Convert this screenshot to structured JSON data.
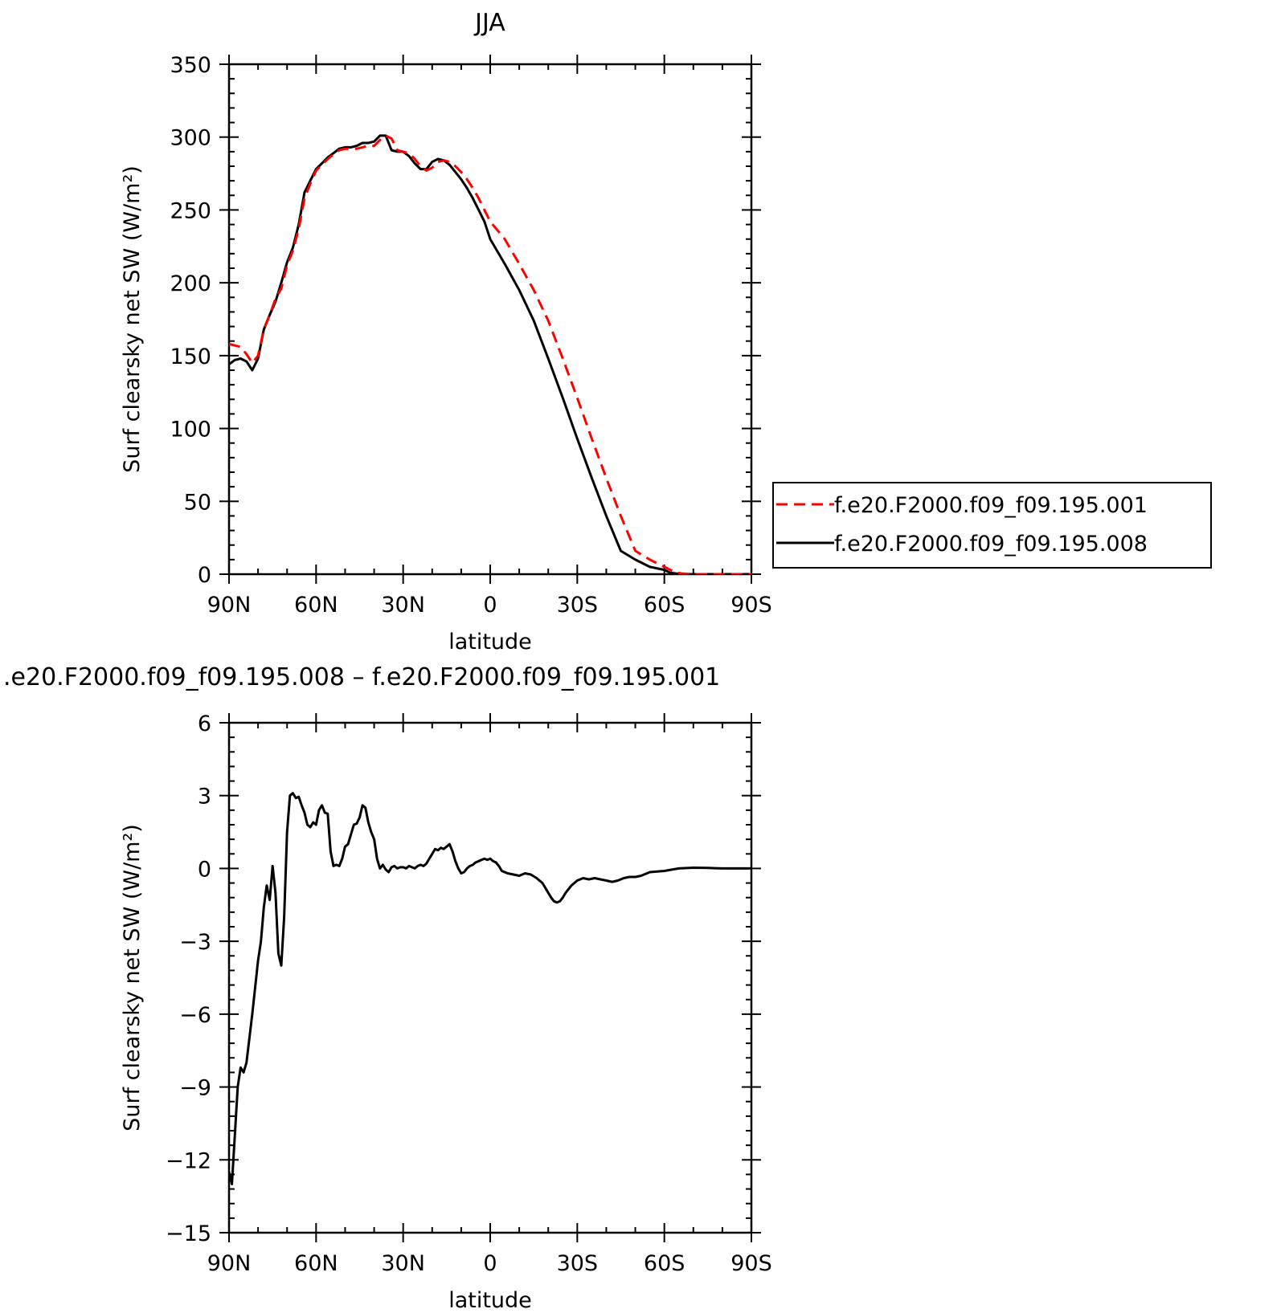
{
  "chart_data": [
    {
      "type": "line",
      "title": "JJA",
      "xlabel": "latitude",
      "ylabel": "Surf clearsky net SW (W/m²)",
      "xlim": [
        90,
        -90
      ],
      "ylim": [
        0,
        350
      ],
      "x_ticks": [
        90,
        60,
        30,
        0,
        -30,
        -60,
        -90
      ],
      "x_tick_labels": [
        "90N",
        "60N",
        "30N",
        "0",
        "30S",
        "60S",
        "90S"
      ],
      "y_ticks": [
        0,
        50,
        100,
        150,
        200,
        250,
        300,
        350
      ],
      "y_tick_labels": [
        "0",
        "50",
        "100",
        "150",
        "200",
        "250",
        "300",
        "350"
      ],
      "legend_position": "right",
      "series": [
        {
          "name": "f.e20.F2000.f09_f09.195.001",
          "color": "#ff0000",
          "dash": "dashed",
          "x": [
            90,
            86,
            84,
            82,
            80,
            78,
            76,
            74,
            72,
            70,
            68,
            66,
            64,
            62,
            60,
            58,
            56,
            54,
            52,
            50,
            48,
            46,
            44,
            42,
            40,
            38,
            36,
            34,
            32,
            30,
            28,
            26,
            24,
            22,
            20,
            18,
            16,
            14,
            12,
            10,
            8,
            6,
            4,
            2,
            0,
            -5,
            -10,
            -15,
            -20,
            -25,
            -30,
            -35,
            -40,
            -45,
            -50,
            -55,
            -60,
            -62,
            -64,
            -66,
            -68,
            -70,
            -75,
            -80,
            -90
          ],
          "y": [
            158,
            156,
            151,
            145,
            150,
            168,
            178,
            189,
            196,
            212,
            222,
            237,
            258,
            268,
            277,
            281,
            285,
            288,
            291,
            292,
            292,
            292,
            293,
            294,
            294,
            298,
            301,
            299,
            291,
            290,
            289,
            285,
            280,
            277,
            279,
            283,
            284,
            283,
            280,
            276,
            271,
            265,
            258,
            250,
            242,
            230,
            213,
            195,
            174,
            148,
            121,
            93,
            66,
            40,
            16,
            10,
            5,
            3,
            1,
            0.5,
            0.2,
            0,
            0,
            0,
            0
          ]
        },
        {
          "name": "f.e20.F2000.f09_f09.195.008",
          "color": "#000000",
          "dash": "solid",
          "x": [
            90,
            88,
            86,
            84,
            82,
            80,
            78,
            76,
            74,
            72,
            70,
            68,
            66,
            64,
            62,
            60,
            58,
            56,
            54,
            52,
            50,
            48,
            46,
            44,
            42,
            40,
            38,
            36,
            34,
            32,
            30,
            28,
            26,
            24,
            22,
            20,
            18,
            16,
            14,
            12,
            10,
            8,
            6,
            4,
            2,
            0,
            -5,
            -10,
            -15,
            -20,
            -25,
            -30,
            -35,
            -40,
            -45,
            -50,
            -55,
            -60,
            -62,
            -64,
            -66,
            -68,
            -70,
            -75,
            -80,
            -90
          ],
          "y": [
            144,
            147,
            148,
            146,
            140,
            148,
            168,
            178,
            187,
            200,
            214,
            224,
            240,
            262,
            270,
            278,
            282,
            286,
            289,
            292,
            293,
            293,
            294,
            296,
            296,
            297,
            301,
            301,
            291,
            290,
            290,
            287,
            282,
            278,
            278,
            283,
            285,
            284,
            281,
            276,
            271,
            265,
            258,
            250,
            242,
            230,
            213,
            195,
            174,
            148,
            121,
            93,
            66,
            40,
            16,
            10,
            5,
            3,
            1,
            0.5,
            0.2,
            0,
            0,
            0,
            0,
            0
          ]
        }
      ]
    },
    {
      "type": "line",
      "title": ".e20.F2000.f09_f09.195.008 – f.e20.F2000.f09_f09.195.001",
      "xlabel": "latitude",
      "ylabel": "Surf clearsky net SW (W/m²)",
      "xlim": [
        90,
        -90
      ],
      "ylim": [
        -15,
        6
      ],
      "x_ticks": [
        90,
        60,
        30,
        0,
        -30,
        -60,
        -90
      ],
      "x_tick_labels": [
        "90N",
        "60N",
        "30N",
        "0",
        "30S",
        "60S",
        "90S"
      ],
      "y_ticks": [
        6,
        3,
        0,
        -3,
        -6,
        -9,
        -12,
        -15
      ],
      "y_tick_labels": [
        "6",
        "3",
        "0",
        "−3",
        "−6",
        "−9",
        "−12",
        "−15"
      ],
      "series": [
        {
          "color": "#000000",
          "dash": "solid",
          "x": [
            90,
            89,
            88,
            87,
            86,
            85,
            84,
            83,
            82,
            80,
            79,
            78,
            77,
            76,
            75,
            74,
            73,
            72,
            71,
            70,
            69,
            68,
            67,
            66,
            65,
            64,
            63,
            62,
            61,
            60,
            59,
            58,
            57,
            56,
            55,
            54,
            53,
            52,
            51,
            50,
            49,
            48,
            47,
            46,
            45,
            44,
            43,
            42,
            41,
            40,
            39,
            38,
            37,
            36,
            35,
            34,
            33,
            32,
            31,
            30,
            29,
            28,
            27,
            26,
            25,
            24,
            23,
            22,
            21,
            20,
            19,
            18,
            17,
            16,
            15,
            14,
            13,
            12,
            11,
            10,
            9,
            8,
            7,
            6,
            5,
            4,
            3,
            2,
            1,
            0,
            -1,
            -2,
            -3,
            -4,
            -6,
            -8,
            -10,
            -12,
            -14,
            -16,
            -18,
            -20,
            -21,
            -22,
            -23,
            -24,
            -25,
            -26,
            -28,
            -30,
            -32,
            -34,
            -36,
            -38,
            -40,
            -42,
            -44,
            -46,
            -48,
            -50,
            -52,
            -55,
            -60,
            -65,
            -70,
            -75,
            -80,
            -85,
            -90
          ],
          "y": [
            -12.5,
            -13,
            -11,
            -9,
            -8.2,
            -8.4,
            -8,
            -7,
            -6,
            -3.8,
            -3,
            -1.6,
            -0.7,
            -1.3,
            0.1,
            -1,
            -3.5,
            -4,
            -2,
            1.5,
            3,
            3.1,
            2.9,
            2.95,
            2.6,
            2.3,
            1.8,
            1.7,
            1.9,
            1.8,
            2.4,
            2.6,
            2.3,
            2.25,
            0.7,
            0.1,
            0.15,
            0.1,
            0.4,
            0.9,
            1.0,
            1.4,
            1.8,
            1.85,
            2.1,
            2.6,
            2.5,
            1.9,
            1.5,
            1.2,
            0.4,
            0.0,
            0.15,
            -0.05,
            -0.15,
            0.05,
            0.1,
            0.0,
            0.05,
            0.05,
            0.0,
            0.1,
            0.05,
            0.0,
            0.1,
            0.15,
            0.1,
            0.2,
            0.4,
            0.6,
            0.8,
            0.75,
            0.85,
            0.8,
            0.9,
            1.0,
            0.7,
            0.3,
            0.0,
            -0.2,
            -0.15,
            0.0,
            0.1,
            0.15,
            0.25,
            0.3,
            0.35,
            0.4,
            0.35,
            0.4,
            0.3,
            0.25,
            0.1,
            -0.1,
            -0.2,
            -0.25,
            -0.3,
            -0.2,
            -0.25,
            -0.4,
            -0.6,
            -1.0,
            -1.2,
            -1.35,
            -1.4,
            -1.35,
            -1.2,
            -1.0,
            -0.7,
            -0.5,
            -0.4,
            -0.45,
            -0.4,
            -0.45,
            -0.5,
            -0.55,
            -0.5,
            -0.4,
            -0.35,
            -0.35,
            -0.3,
            -0.15,
            -0.1,
            0.0,
            0.03,
            0.02,
            0.0,
            0.0,
            0.0
          ]
        }
      ]
    }
  ]
}
